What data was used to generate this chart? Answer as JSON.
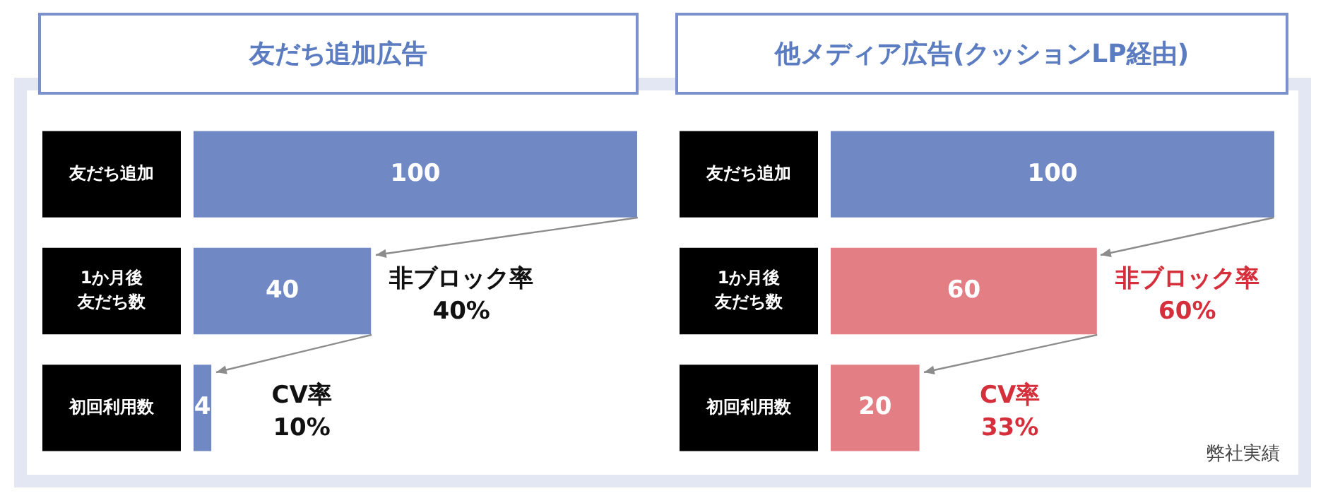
{
  "chart_data": [
    {
      "type": "bar",
      "orientation": "horizontal",
      "title": "友だち追加広告",
      "categories": [
        "友だち追加",
        "1か月後友だち数",
        "初回利用数"
      ],
      "values": [
        100,
        40,
        4
      ],
      "colors": [
        "#7089c5",
        "#7089c5",
        "#7089c5"
      ],
      "data_labels": true,
      "legend": false,
      "tick_labels": false,
      "annotations": [
        "非ブロック率40%",
        "CV率10%"
      ]
    },
    {
      "type": "bar",
      "orientation": "horizontal",
      "title": "他メディア広告(クッションLP経由)",
      "categories": [
        "友だち追加",
        "1か月後友だち数",
        "初回利用数"
      ],
      "values": [
        100,
        60,
        20
      ],
      "colors": [
        "#7089c5",
        "#e37e84",
        "#e37e84"
      ],
      "data_labels": true,
      "legend": false,
      "tick_labels": false,
      "annotations": [
        "非ブロック率60%",
        "CV率33%",
        "弊社実績"
      ]
    }
  ]
}
